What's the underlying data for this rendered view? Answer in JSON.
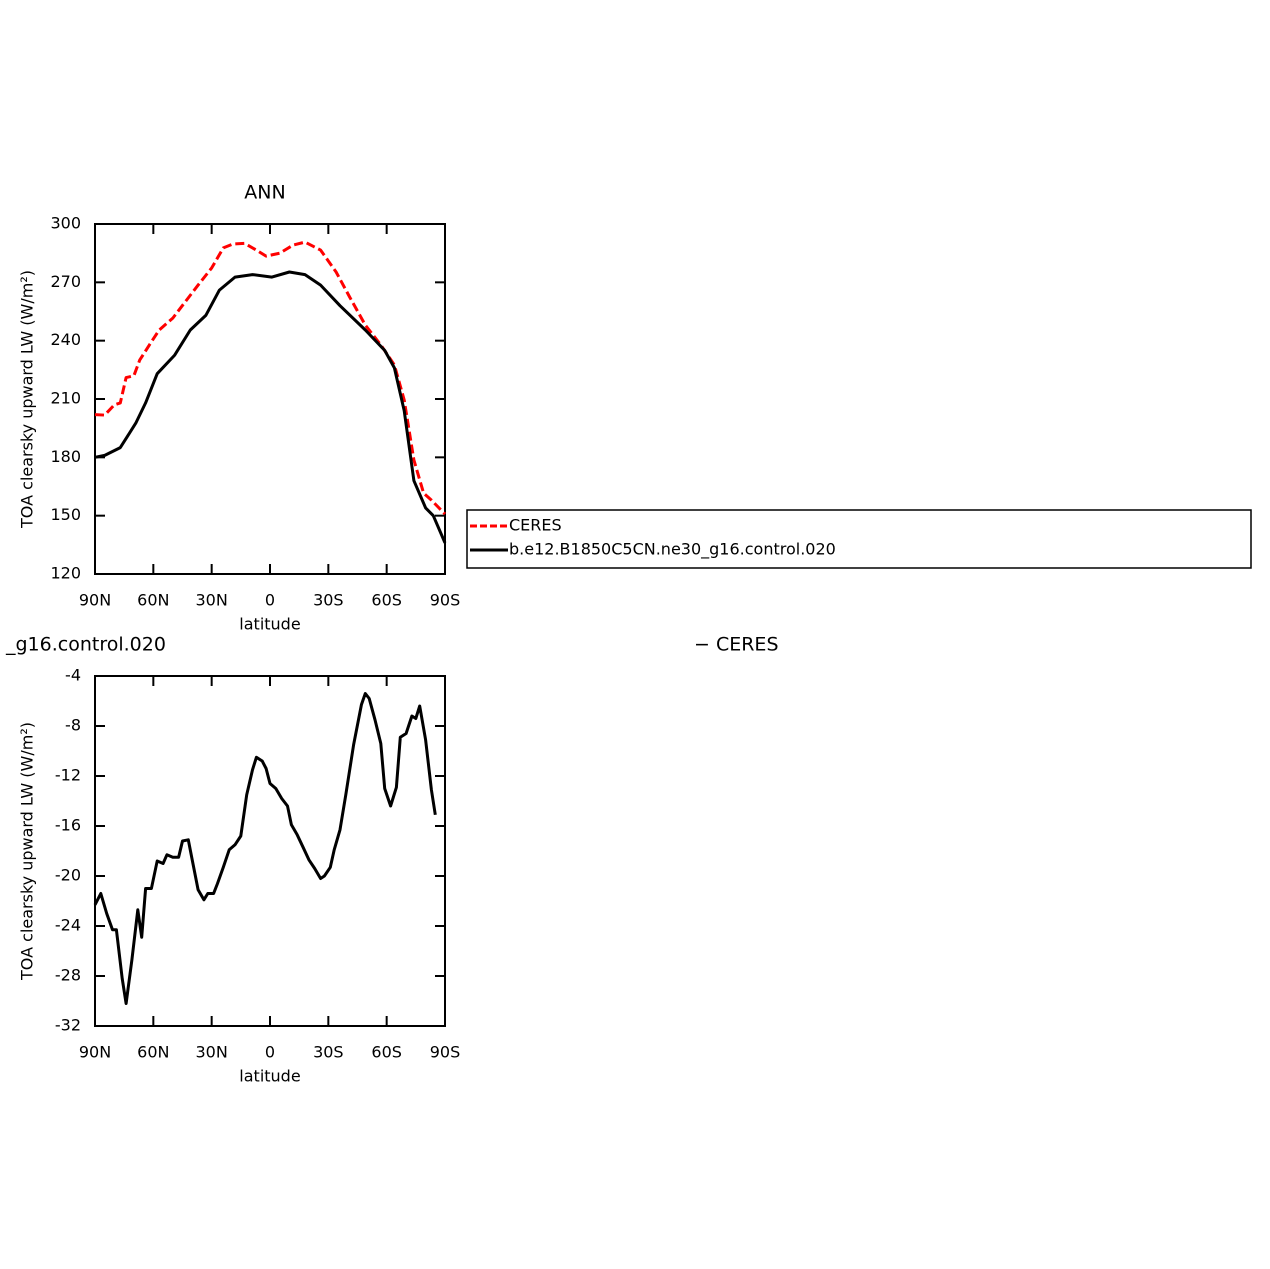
{
  "chart_data": [
    {
      "type": "line",
      "title": "ANN",
      "xlabel": "latitude",
      "ylabel": "TOA clearsky upward LW (W/m²)",
      "xlim": [
        90,
        -90
      ],
      "xticks": [
        {
          "value": 90,
          "label": "90N"
        },
        {
          "value": 60,
          "label": "60N"
        },
        {
          "value": 30,
          "label": "30N"
        },
        0,
        {
          "value": -30,
          "label": "30S"
        },
        {
          "value": -60,
          "label": "60S"
        },
        {
          "value": -90,
          "label": "90S"
        }
      ],
      "ylim": [
        120,
        300
      ],
      "yticks": [
        120,
        150,
        180,
        210,
        240,
        270,
        300
      ],
      "legend": "right",
      "series": [
        {
          "name": "CERES",
          "color": "#ff0000",
          "linestyle": "dashed",
          "x": [
            90,
            85,
            80,
            77,
            74,
            70,
            67,
            62,
            57,
            50,
            44,
            37,
            30,
            24,
            19,
            13,
            7,
            2,
            -5,
            -12,
            -18,
            -26,
            -34,
            -41,
            -49,
            -57,
            -64,
            -69,
            -74,
            -79,
            -83,
            -90
          ],
          "values": [
            202,
            201.7,
            207,
            208,
            221,
            222,
            230,
            237.8,
            245.5,
            251.6,
            259.4,
            268.6,
            277.4,
            287.7,
            289.7,
            290,
            286.6,
            283.5,
            285,
            289.2,
            290.7,
            286.6,
            275.3,
            262.4,
            248,
            237.8,
            227.5,
            209.5,
            178.6,
            161.6,
            158,
            150.8
          ]
        },
        {
          "name": "b.e12.B1850C5CN.ne30_g16.control.020",
          "color": "#000000",
          "linestyle": "solid",
          "x": [
            90,
            85,
            77,
            69,
            64,
            58,
            49,
            41,
            33,
            26,
            18,
            9,
            -1,
            -10,
            -18,
            -26,
            -36,
            -49,
            -59,
            -64,
            -69,
            -74,
            -80,
            -84,
            -90
          ],
          "values": [
            180,
            181,
            185,
            197.6,
            208,
            223,
            232.6,
            245.5,
            253,
            266,
            272.7,
            274,
            272.7,
            275.3,
            274,
            268.6,
            258,
            245.5,
            235,
            226,
            204,
            168,
            154,
            150,
            136
          ]
        }
      ]
    },
    {
      "type": "line",
      "title_left": "_g16.control.020",
      "title_right": "− CERES",
      "xlabel": "latitude",
      "ylabel": "TOA clearsky upward LW (W/m²)",
      "xlim": [
        90,
        -90
      ],
      "xticks": [
        {
          "value": 90,
          "label": "90N"
        },
        {
          "value": 60,
          "label": "60N"
        },
        {
          "value": 30,
          "label": "30N"
        },
        0,
        {
          "value": -30,
          "label": "30S"
        },
        {
          "value": -60,
          "label": "60S"
        },
        {
          "value": -90,
          "label": "90S"
        }
      ],
      "ylim": [
        -32,
        -4
      ],
      "yticks": [
        -32,
        -28,
        -24,
        -20,
        -16,
        -12,
        -8,
        -4
      ],
      "color": "#000000",
      "x": [
        90,
        87,
        84,
        81,
        79,
        76,
        74,
        71,
        68,
        66,
        64,
        61,
        58,
        55,
        53,
        50,
        47,
        45,
        42,
        40,
        37,
        34,
        32,
        29,
        27,
        24,
        21,
        18,
        15,
        12,
        9,
        7,
        4,
        2,
        0,
        -3,
        -6,
        -9,
        -11,
        -14,
        -17,
        -20,
        -23,
        -26,
        -28,
        -31,
        -33,
        -36,
        -39,
        -43,
        -47,
        -49,
        -51,
        -54,
        -57,
        -59,
        -62,
        -65,
        -67,
        -70,
        -73,
        -75,
        -77,
        -80,
        -83,
        -85
      ],
      "values": [
        -22.3,
        -21.4,
        -23,
        -24.3,
        -24.3,
        -28.2,
        -30.2,
        -26.7,
        -22.7,
        -24.9,
        -21,
        -21,
        -18.8,
        -19,
        -18.3,
        -18.5,
        -18.5,
        -17.2,
        -17.1,
        -18.7,
        -21.1,
        -21.9,
        -21.4,
        -21.4,
        -20.6,
        -19.3,
        -17.9,
        -17.5,
        -16.8,
        -13.5,
        -11.5,
        -10.5,
        -10.8,
        -11.4,
        -12.6,
        -13,
        -13.8,
        -14.4,
        -15.9,
        -16.7,
        -17.7,
        -18.7,
        -19.4,
        -20.2,
        -20,
        -19.3,
        -17.9,
        -16.3,
        -13.5,
        -9.5,
        -6.3,
        -5.4,
        -5.8,
        -7.5,
        -9.4,
        -13,
        -14.4,
        -12.9,
        -8.9,
        -8.6,
        -7.2,
        -7.4,
        -6.4,
        -9.1,
        -13.1,
        -15.1
      ]
    }
  ]
}
